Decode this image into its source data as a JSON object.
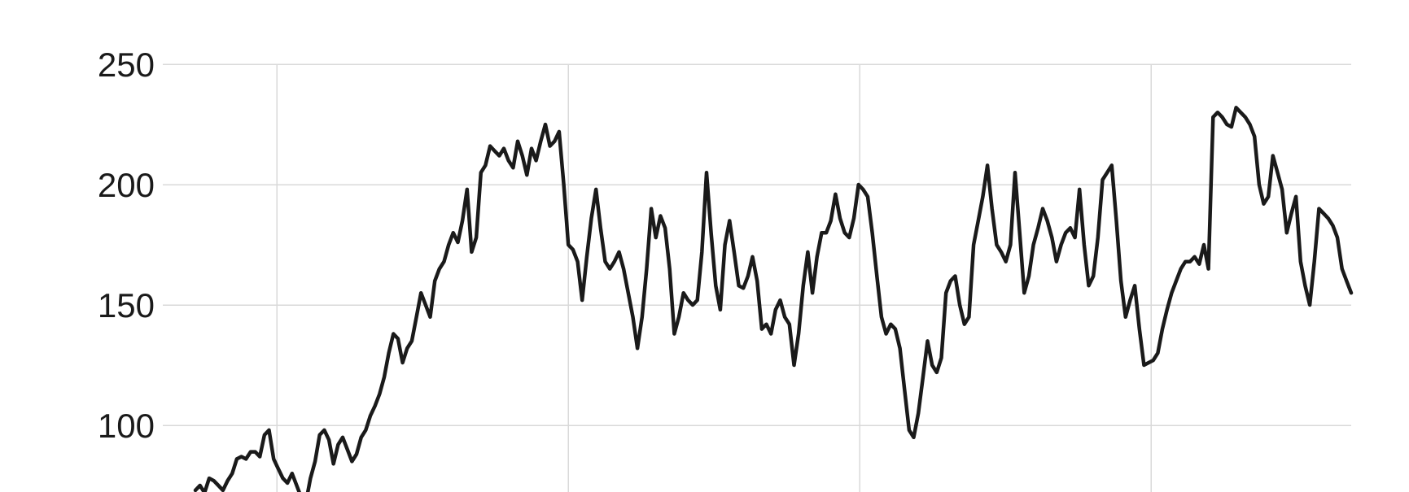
{
  "chart_data": {
    "type": "line",
    "title": "",
    "xlabel": "",
    "ylabel": "",
    "ylim": [
      75,
      250
    ],
    "yticks": [
      100,
      150,
      200,
      250
    ],
    "ytick_labels": [
      "100",
      "150",
      "200",
      "250"
    ],
    "x_grid_count": 4,
    "grid": true,
    "legend": "none",
    "colors": {
      "line": "#1a1a1a",
      "grid": "#d9d9d9"
    },
    "series": [
      {
        "values": [
          73,
          75,
          72,
          78,
          77,
          75,
          73,
          77,
          80,
          86,
          87,
          86,
          89,
          89,
          87,
          96,
          98,
          86,
          82,
          78,
          76,
          80,
          75,
          70,
          68,
          78,
          85,
          96,
          98,
          94,
          84,
          92,
          95,
          90,
          85,
          88,
          95,
          98,
          104,
          108,
          113,
          120,
          130,
          138,
          136,
          126,
          132,
          135,
          145,
          155,
          150,
          145,
          160,
          165,
          168,
          175,
          180,
          176,
          185,
          198,
          172,
          178,
          205,
          208,
          216,
          214,
          212,
          215,
          210,
          207,
          218,
          212,
          204,
          215,
          210,
          218,
          225,
          216,
          218,
          222,
          200,
          175,
          173,
          168,
          152,
          170,
          186,
          198,
          182,
          168,
          165,
          168,
          172,
          165,
          155,
          145,
          132,
          145,
          165,
          190,
          178,
          187,
          182,
          165,
          138,
          145,
          155,
          152,
          150,
          152,
          172,
          205,
          180,
          158,
          148,
          175,
          185,
          172,
          158,
          157,
          162,
          170,
          160,
          140,
          142,
          138,
          148,
          152,
          145,
          142,
          125,
          138,
          158,
          172,
          155,
          170,
          180,
          180,
          185,
          196,
          186,
          180,
          178,
          186,
          200,
          198,
          195,
          180,
          162,
          145,
          138,
          142,
          140,
          132,
          115,
          98,
          95,
          105,
          120,
          135,
          125,
          122,
          128,
          155,
          160,
          162,
          150,
          142,
          145,
          175,
          185,
          195,
          208,
          190,
          175,
          172,
          168,
          175,
          205,
          180,
          155,
          162,
          175,
          182,
          190,
          185,
          178,
          168,
          175,
          180,
          182,
          178,
          198,
          175,
          158,
          162,
          178,
          202,
          205,
          208,
          185,
          160,
          145,
          152,
          158,
          140,
          125,
          126,
          127,
          130,
          140,
          148,
          155,
          160,
          165,
          168,
          168,
          170,
          167,
          175,
          165,
          228,
          230,
          228,
          225,
          224,
          232,
          230,
          228,
          225,
          220,
          200,
          192,
          195,
          212,
          205,
          198,
          180,
          188,
          195,
          168,
          158,
          150,
          168,
          190,
          188,
          186,
          183,
          178,
          165,
          160,
          155
        ]
      }
    ]
  }
}
